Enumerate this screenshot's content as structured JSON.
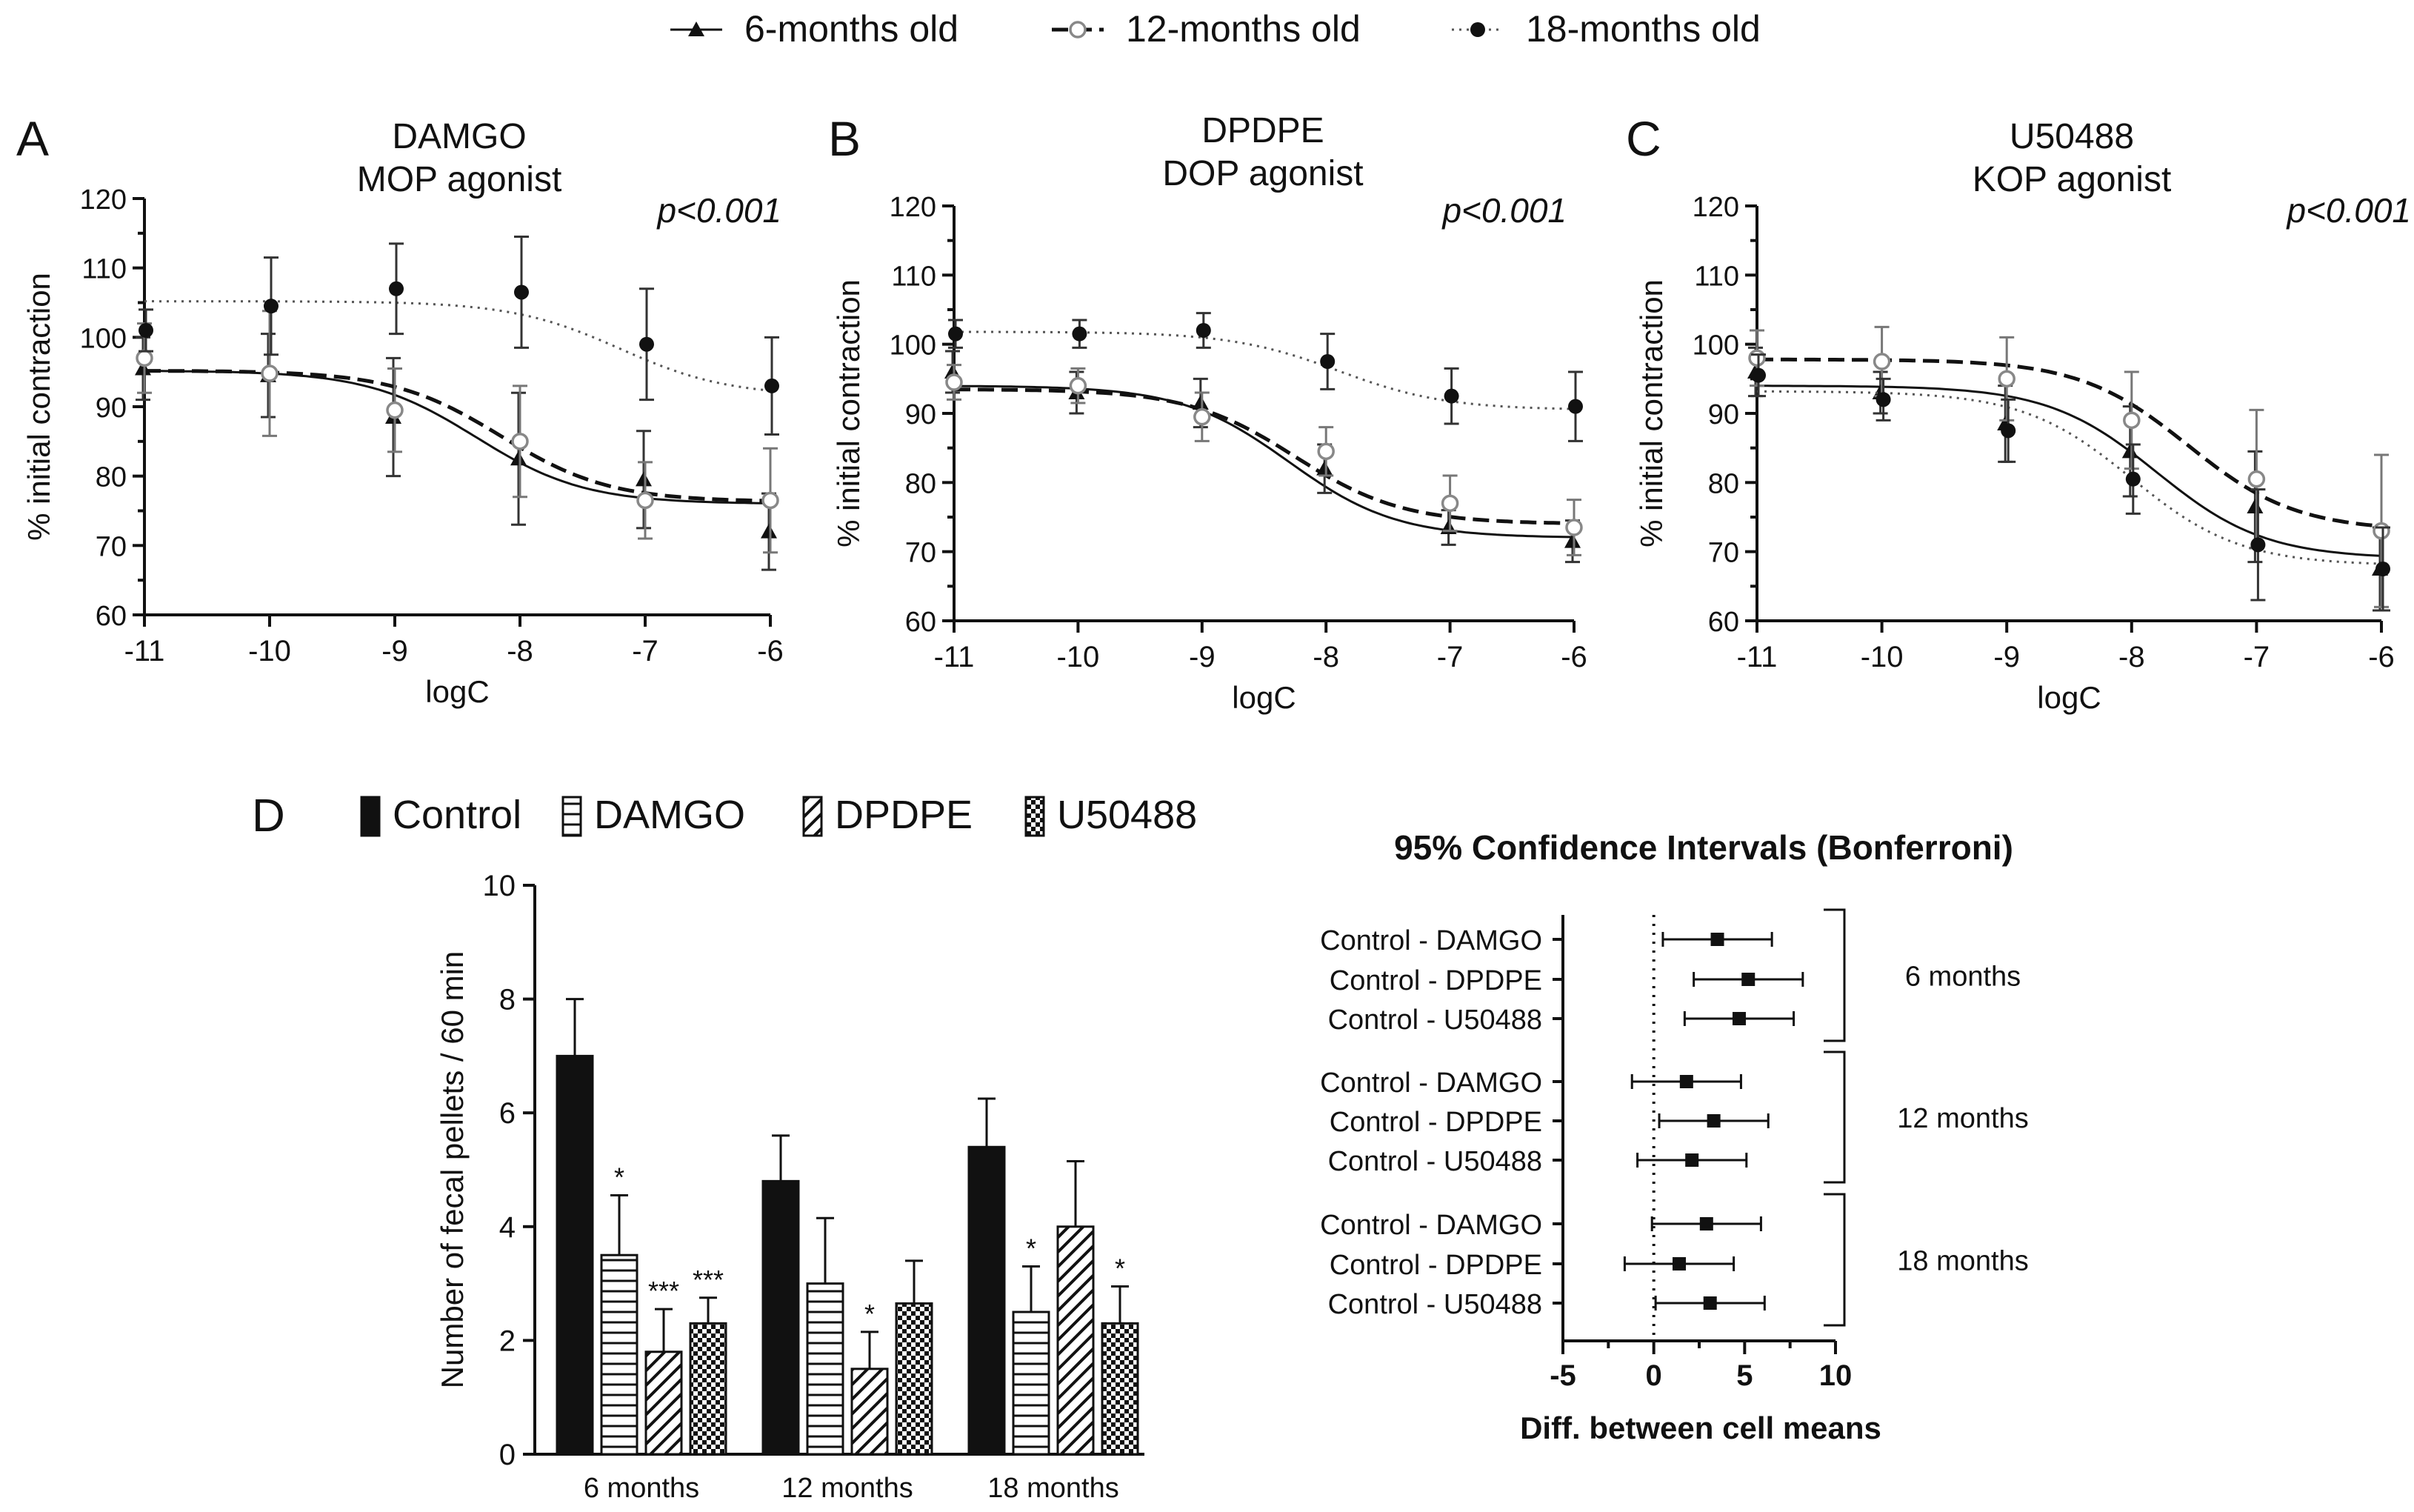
{
  "legend_top": [
    {
      "label": "6-months old",
      "marker": "triangle",
      "line": "solid"
    },
    {
      "label": "12-months old",
      "marker": "open-circle",
      "line": "dashed"
    },
    {
      "label": "18-months old",
      "marker": "filled-circle",
      "line": "dotted"
    }
  ],
  "chart_data": [
    {
      "type": "line",
      "panel": "A",
      "title": "DAMGO",
      "subtitle": "MOP agonist",
      "annotation": "p<0.001",
      "xlabel": "logC",
      "ylabel": "% initial contraction",
      "xlim": [
        -11,
        -6
      ],
      "ylim": [
        60,
        120
      ],
      "xticks": [
        "-11",
        "-10",
        "-9",
        "-8",
        "-7",
        "-6"
      ],
      "yticks": [
        "60",
        "70",
        "80",
        "90",
        "100",
        "110",
        "120"
      ],
      "x": [
        -11,
        -10,
        -9,
        -8,
        -7,
        -6
      ],
      "series": [
        {
          "name": "6-months old",
          "values": [
            95.5,
            94.5,
            88.5,
            82.5,
            79.5,
            72.0
          ],
          "errors": [
            4.5,
            6.0,
            8.5,
            9.5,
            7.0,
            5.5
          ],
          "fit": {
            "top": 95.2,
            "bottom": 76.0,
            "logEC50": -8.35
          }
        },
        {
          "name": "12-months old",
          "values": [
            97.0,
            94.8,
            89.5,
            85.0,
            76.5,
            76.5
          ],
          "errors": [
            5.0,
            9.0,
            6.0,
            8.0,
            5.5,
            7.5
          ],
          "fit": {
            "top": 95.2,
            "bottom": 76.3,
            "logEC50": -8.15
          }
        },
        {
          "name": "18-months old",
          "values": [
            101.0,
            104.5,
            107.0,
            106.5,
            99.0,
            93.0
          ],
          "errors": [
            3.0,
            7.0,
            6.5,
            8.0,
            8.0,
            7.0
          ],
          "fit": {
            "top": 105.2,
            "bottom": 91.5,
            "logEC50": -7.2
          }
        }
      ]
    },
    {
      "type": "line",
      "panel": "B",
      "title": "DPDPE",
      "subtitle": "DOP agonist",
      "annotation": "p<0.001",
      "xlabel": "logC",
      "ylabel": "% initial contraction",
      "xlim": [
        -11,
        -6
      ],
      "ylim": [
        60,
        120
      ],
      "xticks": [
        "-11",
        "-10",
        "-9",
        "-8",
        "-7",
        "-6"
      ],
      "yticks": [
        "60",
        "70",
        "80",
        "90",
        "100",
        "110",
        "120"
      ],
      "x": [
        -11,
        -10,
        -9,
        -8,
        -7,
        -6
      ],
      "series": [
        {
          "name": "6-months old",
          "values": [
            96.0,
            93.0,
            91.5,
            82.0,
            73.5,
            71.5
          ],
          "errors": [
            3.0,
            3.0,
            3.5,
            3.5,
            2.5,
            3.0
          ],
          "fit": {
            "top": 94.0,
            "bottom": 72.0,
            "logEC50": -8.3
          }
        },
        {
          "name": "12-months old",
          "values": [
            94.5,
            94.0,
            89.5,
            84.5,
            77.0,
            73.5
          ],
          "errors": [
            2.5,
            2.5,
            3.5,
            3.5,
            4.0,
            4.0
          ],
          "fit": {
            "top": 93.5,
            "bottom": 74.0,
            "logEC50": -8.25
          }
        },
        {
          "name": "18-months old",
          "values": [
            101.5,
            101.5,
            102.0,
            97.5,
            92.5,
            91.0
          ],
          "errors": [
            2.0,
            2.0,
            2.5,
            4.0,
            4.0,
            5.0
          ],
          "fit": {
            "top": 101.8,
            "bottom": 90.5,
            "logEC50": -7.9
          }
        }
      ]
    },
    {
      "type": "line",
      "panel": "C",
      "title": "U50488",
      "subtitle": "KOP agonist",
      "annotation": "p<0.001",
      "xlabel": "logC",
      "ylabel": "% initial contraction",
      "xlim": [
        -11,
        -6
      ],
      "ylim": [
        60,
        120
      ],
      "xticks": [
        "-11",
        "-10",
        "-9",
        "-8",
        "-7",
        "-6"
      ],
      "yticks": [
        "60",
        "70",
        "80",
        "90",
        "100",
        "110",
        "120"
      ],
      "x": [
        -11,
        -10,
        -9,
        -8,
        -7,
        -6
      ],
      "series": [
        {
          "name": "6-months old",
          "values": [
            96.0,
            93.0,
            88.5,
            84.5,
            76.5,
            67.5
          ],
          "errors": [
            3.5,
            3.0,
            5.5,
            6.5,
            8.0,
            6.0
          ],
          "fit": {
            "top": 94.0,
            "bottom": 69.0,
            "logEC50": -7.8
          }
        },
        {
          "name": "12-months old",
          "values": [
            98.0,
            97.5,
            95.0,
            89.0,
            80.5,
            73.0
          ],
          "errors": [
            4.0,
            5.0,
            6.0,
            7.0,
            10.0,
            11.0
          ],
          "fit": {
            "top": 97.8,
            "bottom": 73.0,
            "logEC50": -7.55
          }
        },
        {
          "name": "18-months old",
          "values": [
            95.5,
            92.0,
            87.5,
            80.5,
            71.0,
            67.5
          ],
          "errors": [
            3.0,
            3.0,
            4.5,
            5.0,
            8.0,
            6.0
          ],
          "fit": {
            "top": 93.2,
            "bottom": 68.0,
            "logEC50": -8.0
          }
        }
      ]
    },
    {
      "type": "bar",
      "panel": "D",
      "ylabel": "Number of fecal pellets / 60 min",
      "ylim": [
        0,
        10
      ],
      "yticks": [
        "0",
        "2",
        "4",
        "6",
        "8",
        "10"
      ],
      "categories": [
        "6 months",
        "12 months",
        "18 months"
      ],
      "series": [
        {
          "name": "Control",
          "pattern": "solid",
          "values": [
            7.0,
            4.8,
            5.4
          ],
          "errors": [
            1.0,
            0.8,
            0.85
          ],
          "sig": [
            "",
            "",
            ""
          ]
        },
        {
          "name": "DAMGO",
          "pattern": "horizontal",
          "values": [
            3.5,
            3.0,
            2.5
          ],
          "errors": [
            1.05,
            1.15,
            0.8
          ],
          "sig": [
            "*",
            "",
            "*"
          ]
        },
        {
          "name": "DPDPE",
          "pattern": "diagonal",
          "values": [
            1.8,
            1.5,
            4.0
          ],
          "errors": [
            0.75,
            0.65,
            1.15
          ],
          "sig": [
            "***",
            "*",
            ""
          ]
        },
        {
          "name": "U50488",
          "pattern": "checker",
          "values": [
            2.3,
            2.65,
            2.3
          ],
          "errors": [
            0.45,
            0.75,
            0.65
          ],
          "sig": [
            "***",
            "",
            "*"
          ]
        }
      ]
    },
    {
      "type": "scatter",
      "panel": "E",
      "title": "95% Confidence Intervals (Bonferroni)",
      "xlabel": "Diff. between cell means",
      "xlim": [
        -5,
        10
      ],
      "xticks": [
        "-5",
        "0",
        "5",
        "10"
      ],
      "groups": [
        {
          "label": "6 months",
          "rows": [
            {
              "label": "Control - DAMGO",
              "mean": 3.5,
              "low": 0.5,
              "high": 6.5
            },
            {
              "label": "Control - DPDPE",
              "mean": 5.2,
              "low": 2.2,
              "high": 8.2
            },
            {
              "label": "Control - U50488",
              "mean": 4.7,
              "low": 1.7,
              "high": 7.7
            }
          ]
        },
        {
          "label": "12 months",
          "rows": [
            {
              "label": "Control - DAMGO",
              "mean": 1.8,
              "low": -1.2,
              "high": 4.8
            },
            {
              "label": "Control - DPDPE",
              "mean": 3.3,
              "low": 0.3,
              "high": 6.3
            },
            {
              "label": "Control - U50488",
              "mean": 2.1,
              "low": -0.9,
              "high": 5.1
            }
          ]
        },
        {
          "label": "18 months",
          "rows": [
            {
              "label": "Control - DAMGO",
              "mean": 2.9,
              "low": -0.1,
              "high": 5.9
            },
            {
              "label": "Control - DPDPE",
              "mean": 1.4,
              "low": -1.6,
              "high": 4.4
            },
            {
              "label": "Control - U50488",
              "mean": 3.1,
              "low": 0.1,
              "high": 6.1
            }
          ]
        }
      ]
    }
  ]
}
